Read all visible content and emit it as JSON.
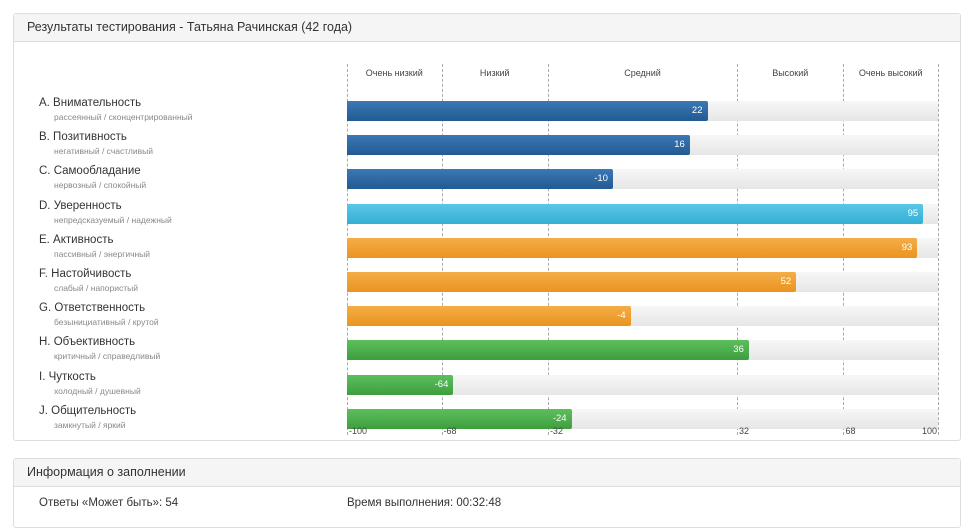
{
  "results": {
    "title": "Результаты тестирования - Татьяна Рачинская (42 года)",
    "zones": [
      "Очень низкий",
      "Низкий",
      "Средний",
      "Высокий",
      "Очень высокий"
    ],
    "ticks": [
      "-100",
      "-68",
      "-32",
      "32",
      "68",
      "100"
    ],
    "traits": [
      {
        "name": "A. Внимательность",
        "sub": "рассеянный / сконцентрированный",
        "value": 22,
        "color": "#2a66a3"
      },
      {
        "name": "B. Позитивность",
        "sub": "негативный / счастливый",
        "value": 16,
        "color": "#2a66a3"
      },
      {
        "name": "C. Самообладание",
        "sub": "нервозный / спокойный",
        "value": -10,
        "color": "#2a66a3"
      },
      {
        "name": "D. Уверенность",
        "sub": "непредсказуемый / надежный",
        "value": 95,
        "color": "#3cb6dc"
      },
      {
        "name": "E. Активность",
        "sub": "пассивный / энергичный",
        "value": 93,
        "color": "#ee9c2a"
      },
      {
        "name": "F. Настойчивость",
        "sub": "слабый / напористый",
        "value": 52,
        "color": "#ee9c2a"
      },
      {
        "name": "G. Ответственность",
        "sub": "безынициативный / крутой",
        "value": -4,
        "color": "#ee9c2a"
      },
      {
        "name": "H. Объективность",
        "sub": "критичный / справедливый",
        "value": 36,
        "color": "#47a947"
      },
      {
        "name": "I.  Чуткость",
        "sub": "холодный / душевный",
        "value": -64,
        "color": "#47a947"
      },
      {
        "name": "J. Общительность",
        "sub": "замкнутый / яркий",
        "value": -24,
        "color": "#47a947"
      }
    ]
  },
  "chart_data": {
    "type": "bar",
    "orientation": "horizontal",
    "categories": [
      "A. Внимательность",
      "B. Позитивность",
      "C. Самообладание",
      "D. Уверенность",
      "E. Активность",
      "F. Настойчивость",
      "G. Ответственность",
      "H. Объективность",
      "I.  Чуткость",
      "J. Общительность"
    ],
    "values": [
      22,
      16,
      -10,
      95,
      93,
      52,
      -4,
      36,
      -64,
      -24
    ],
    "xlim": [
      -100,
      100
    ],
    "xticks": [
      -100,
      -68,
      -32,
      32,
      68,
      100
    ],
    "bands": [
      "Очень низкий",
      "Низкий",
      "Средний",
      "Высокий",
      "Очень высокий"
    ]
  },
  "info": {
    "title": "Информация о заполнении",
    "maybe_answers": "Ответы «Может быть»: 54",
    "duration": "Время выполнения: 00:32:48"
  }
}
